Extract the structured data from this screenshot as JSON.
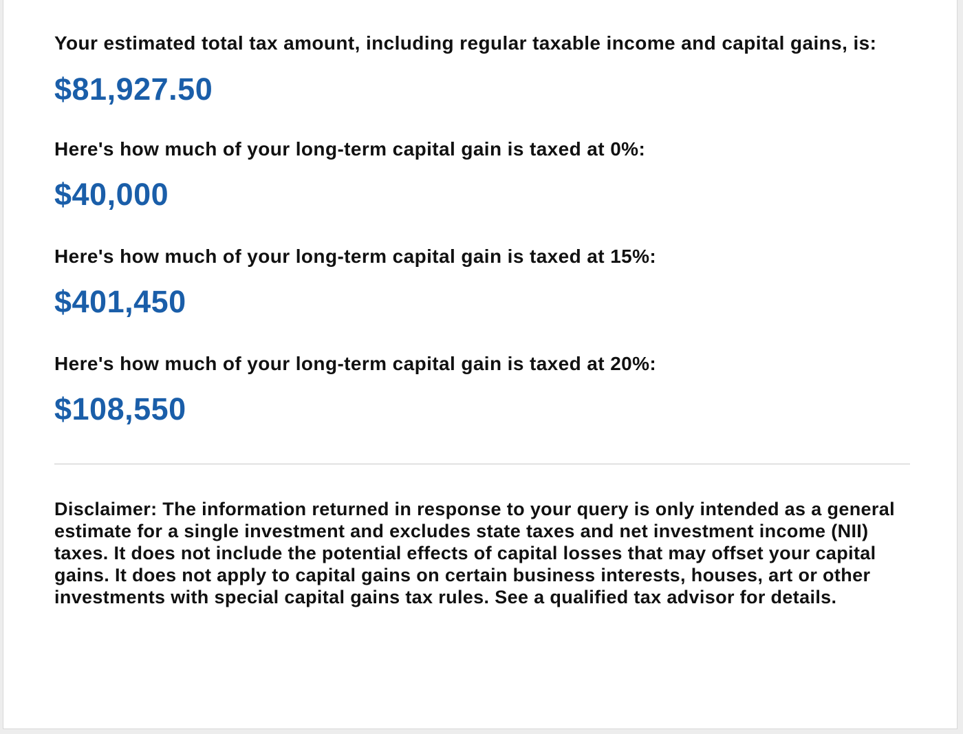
{
  "results": {
    "total_label": "Your estimated total tax amount, including regular taxable income and capital gains, is:",
    "total_value": "$81,927.50",
    "zero_label": "Here's how much of your long-term capital gain is taxed at 0%:",
    "zero_value": "$40,000",
    "fifteen_label": "Here's how much of your long-term capital gain is taxed at 15%:",
    "fifteen_value": "$401,450",
    "twenty_label": "Here's how much of your long-term capital gain is taxed at 20%:",
    "twenty_value": "$108,550"
  },
  "disclaimer": {
    "prefix": "Disclaimer: The information returned in response to your query is only intended as a ",
    "emphasis": "general estimate",
    "suffix": " for a single investment and excludes state taxes and net investment income (NII) taxes. It does not include the potential effects of capital losses that may offset your capital gains. It does not apply to capital gains on certain business interests, houses, art or other investments with special capital gains tax rules. See a qualified tax advisor for details."
  },
  "colors": {
    "amount": "#1a5ea9",
    "text": "#111111",
    "divider": "#c8c8c8"
  }
}
